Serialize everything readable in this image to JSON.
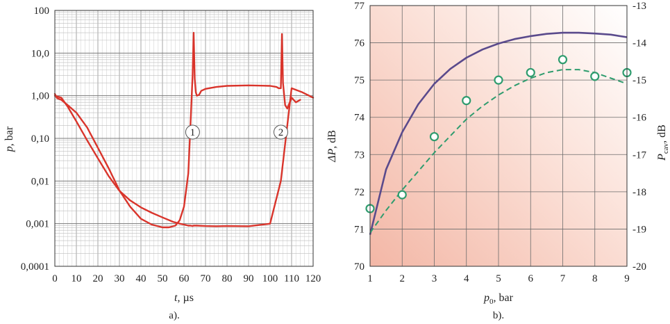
{
  "chart_data": [
    {
      "type": "line",
      "panel_label": "a).",
      "xlabel_var": "t",
      "xlabel_unit": ", µs",
      "ylabel_var": "p",
      "ylabel_unit": ", bar",
      "xlim": [
        0,
        120
      ],
      "ylim": [
        0.0001,
        100
      ],
      "yscale": "log",
      "grid": true,
      "x_ticks": [
        "0",
        "10",
        "20",
        "30",
        "40",
        "50",
        "60",
        "70",
        "80",
        "90",
        "100",
        "110",
        "120"
      ],
      "y_ticks": [
        "0,0001",
        "0,001",
        "0,01",
        "0,10",
        "1,00",
        "10,0",
        "100"
      ],
      "line_color": "#d9342b",
      "series": [
        {
          "x": [
            0,
            3,
            6,
            10,
            15,
            20,
            25,
            30,
            35,
            40,
            45,
            50,
            55,
            58,
            60,
            62,
            63,
            64,
            64.5,
            65,
            66,
            68,
            70,
            75,
            80,
            90,
            100,
            105,
            110,
            115,
            120
          ],
          "y": [
            1.0,
            0.9,
            0.55,
            0.25,
            0.09,
            0.034,
            0.013,
            0.0059,
            0.0035,
            0.0024,
            0.0018,
            0.0014,
            0.0011,
            0.001,
            0.00095,
            0.0009,
            0.0009,
            0.00088,
            0.0009,
            0.0009,
            0.0009,
            0.00089,
            0.00088,
            0.00087,
            0.00088,
            0.00087,
            0.001,
            0.01,
            1.5,
            1.2,
            0.9
          ]
        },
        {
          "x": [
            0,
            1,
            3,
            6,
            10,
            15,
            20,
            25,
            30,
            35,
            40,
            45,
            50,
            53,
            56,
            58,
            60,
            62,
            63,
            64,
            64.5,
            65,
            65.5,
            66,
            67,
            68,
            70,
            75,
            80,
            90,
            100,
            103,
            104,
            105,
            105.5,
            106,
            107,
            108,
            110,
            112,
            114
          ],
          "y": [
            1.1,
            0.88,
            0.8,
            0.6,
            0.4,
            0.18,
            0.06,
            0.02,
            0.006,
            0.0025,
            0.0013,
            0.00095,
            0.00082,
            0.00082,
            0.0009,
            0.0012,
            0.0025,
            0.015,
            0.2,
            3.0,
            30.0,
            2.5,
            1.2,
            1.0,
            1.05,
            1.3,
            1.45,
            1.6,
            1.7,
            1.75,
            1.7,
            1.6,
            1.5,
            1.5,
            28.0,
            2.0,
            0.6,
            0.5,
            0.9,
            0.7,
            0.8
          ]
        }
      ],
      "annotations": [
        {
          "text": "1",
          "x": 64,
          "y": 0.14
        },
        {
          "text": "2",
          "x": 105,
          "y": 0.14
        }
      ]
    },
    {
      "type": "line",
      "panel_label": "b).",
      "xlabel_var": "p",
      "xlabel_sub": "0",
      "xlabel_unit": ", bar",
      "ylabel_left_var": "ΔP",
      "ylabel_left_unit": ", dB",
      "ylabel_right_var": "P",
      "ylabel_right_sub": "cav",
      "ylabel_right_unit": ", dB",
      "xlim": [
        1,
        9
      ],
      "ylim_left": [
        70,
        77
      ],
      "ylim_right": [
        -20,
        -13
      ],
      "grid": true,
      "x_ticks": [
        "1",
        "2",
        "3",
        "4",
        "5",
        "6",
        "7",
        "8",
        "9"
      ],
      "y_ticks_left": [
        "70",
        "71",
        "72",
        "73",
        "74",
        "75",
        "76",
        "77"
      ],
      "y_ticks_right": [
        "-20",
        "-19",
        "-18",
        "-17",
        "-16",
        "-15",
        "-14",
        "-13"
      ],
      "series": [
        {
          "style": "solid",
          "color": "#5a4a8c",
          "axis": "left",
          "x": [
            1,
            1.5,
            2,
            2.5,
            3,
            3.5,
            4,
            4.5,
            5,
            5.5,
            6,
            6.5,
            7,
            7.5,
            8,
            8.5,
            9
          ],
          "y": [
            70.85,
            72.6,
            73.6,
            74.35,
            74.9,
            75.3,
            75.6,
            75.82,
            75.98,
            76.1,
            76.18,
            76.24,
            76.27,
            76.27,
            76.25,
            76.22,
            76.15
          ]
        },
        {
          "style": "dashed",
          "color": "#2f9c6e",
          "axis": "right",
          "x": [
            1,
            1.5,
            2,
            2.5,
            3,
            3.5,
            4,
            4.5,
            5,
            5.5,
            6,
            6.5,
            7,
            7.5,
            8,
            8.5,
            9
          ],
          "y": [
            -19.1,
            -18.5,
            -17.95,
            -17.45,
            -16.95,
            -16.5,
            -16.05,
            -15.7,
            -15.4,
            -15.15,
            -14.95,
            -14.8,
            -14.72,
            -14.72,
            -14.8,
            -14.95,
            -15.1
          ]
        }
      ],
      "points": {
        "color": "#2f9c6e",
        "axis": "right",
        "x": [
          1,
          2,
          3,
          4,
          5,
          6,
          7,
          8,
          9
        ],
        "y": [
          -18.45,
          -18.08,
          -16.52,
          -15.55,
          -15.0,
          -14.8,
          -14.45,
          -14.9,
          -14.8
        ]
      }
    }
  ]
}
